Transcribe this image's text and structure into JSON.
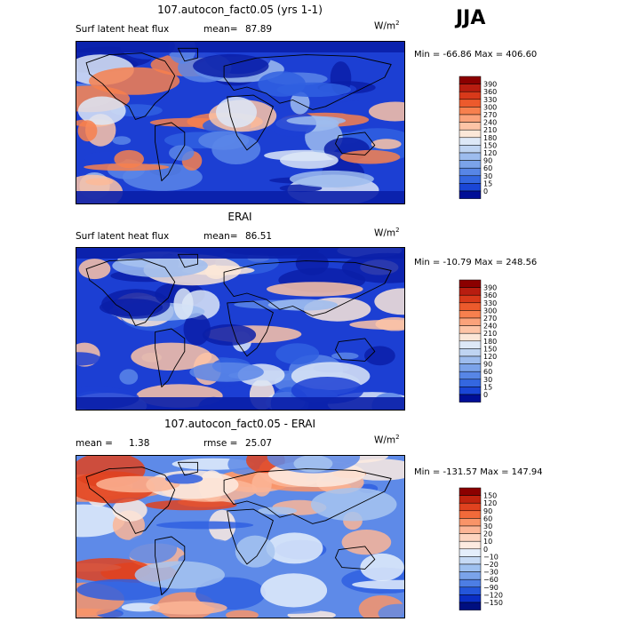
{
  "season": "JJA",
  "panels": [
    {
      "title": "107.autocon_fact0.05 (yrs 1-1)",
      "left_label": "Surf latent heat flux",
      "stat1_label": "mean=",
      "stat1_value": "87.89",
      "stat2_label": "",
      "stat2_value": "",
      "units": "W/m",
      "units_sup": "2",
      "minmax": "Min = -66.86 Max = 406.60",
      "colorbar": {
        "levels": [
          "390",
          "360",
          "330",
          "300",
          "270",
          "240",
          "210",
          "180",
          "150",
          "120",
          "90",
          "60",
          "30",
          "15",
          "0"
        ],
        "colors": [
          "#8b0000",
          "#b81d10",
          "#d8391a",
          "#ec5a2c",
          "#f7804e",
          "#fba27a",
          "#fdc4a6",
          "#fbe7d8",
          "#dde8f7",
          "#bfd4f2",
          "#9dbcee",
          "#7ba3ea",
          "#5786e6",
          "#3467e0",
          "#1a46d6",
          "#000f96"
        ]
      },
      "map_palette": [
        "#0a1fa8",
        "#1c3fd3",
        "#3060e0",
        "#5a86e8",
        "#9dbcee",
        "#dde8f7",
        "#fdc4a6",
        "#f7804e"
      ]
    },
    {
      "title": "ERAI",
      "left_label": "Surf latent heat flux",
      "stat1_label": "mean=",
      "stat1_value": "86.51",
      "stat2_label": "",
      "stat2_value": "",
      "units": "W/m",
      "units_sup": "2",
      "minmax": "Min = -10.79 Max = 248.56",
      "colorbar": {
        "levels": [
          "390",
          "360",
          "330",
          "300",
          "270",
          "240",
          "210",
          "180",
          "150",
          "120",
          "90",
          "60",
          "30",
          "15",
          "0"
        ],
        "colors": [
          "#8b0000",
          "#b81d10",
          "#d8391a",
          "#ec5a2c",
          "#f7804e",
          "#fba27a",
          "#fdc4a6",
          "#fbe7d8",
          "#dde8f7",
          "#bfd4f2",
          "#9dbcee",
          "#7ba3ea",
          "#5786e6",
          "#3467e0",
          "#1a46d6",
          "#000f96"
        ]
      },
      "map_palette": [
        "#0a1fa8",
        "#1c3fd3",
        "#3060e0",
        "#5a86e8",
        "#9dbcee",
        "#dde8f7",
        "#fbe7d8",
        "#fdc4a6"
      ]
    },
    {
      "title": "107.autocon_fact0.05 - ERAI",
      "left_label": "",
      "stat1_label": "mean =",
      "stat1_value": "1.38",
      "stat2_label": "rmse =",
      "stat2_value": "25.07",
      "units": "W/m",
      "units_sup": "2",
      "minmax": "Min = -131.57 Max = 147.94",
      "colorbar": {
        "levels": [
          "150",
          "120",
          "90",
          "60",
          "30",
          "20",
          "10",
          "0",
          "−10",
          "−20",
          "−30",
          "−60",
          "−90",
          "−120",
          "−150"
        ],
        "colors": [
          "#8b0000",
          "#c0230f",
          "#e0421f",
          "#f16a3a",
          "#f99468",
          "#fcb596",
          "#fdd4bf",
          "#fdebe0",
          "#e4eefb",
          "#c6daf5",
          "#9fc1f0",
          "#7aa3ea",
          "#4d7ee4",
          "#2456da",
          "#0a2ec4",
          "#000f80"
        ]
      },
      "map_palette": [
        "#2f5fe0",
        "#5e8ae8",
        "#a7c4f0",
        "#e4eefb",
        "#fdebe0",
        "#fcb596",
        "#f99468",
        "#e0421f"
      ]
    }
  ]
}
